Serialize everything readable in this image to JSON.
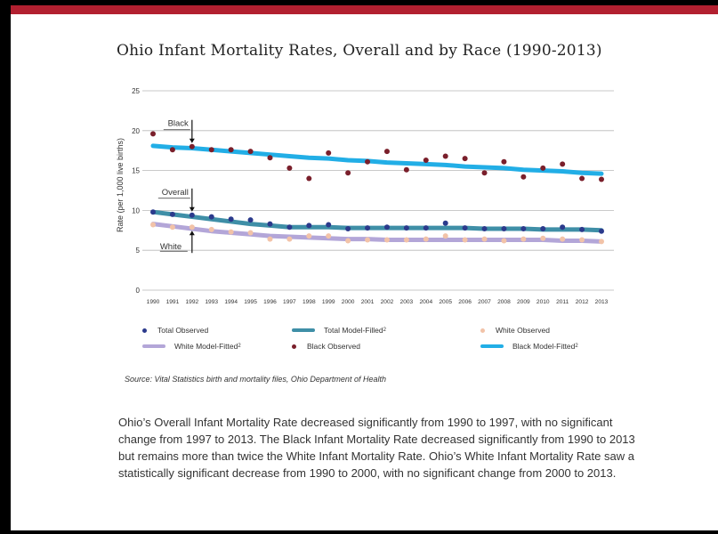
{
  "page": {
    "title": "Ohio Infant Mortality Rates, Overall and by Race (1990-2013)",
    "source": "Source: Vital Statistics birth and mortality files, Ohio Department of Health",
    "caption": "Ohio’s Overall Infant Mortality Rate decreased significantly from 1990 to 1997, with no significant change from 1997 to 2013. The Black Infant Mortality Rate decreased significantly from 1990 to 2013 but remains more than twice the White Infant Mortality Rate. Ohio’s White Infant Mortality Rate saw a statistically significant decrease from 1990 to 2000, with no significant change from 2000 to 2013."
  },
  "colors": {
    "border": "#000000",
    "accent_bar": "#b22030",
    "total_observed": "#2b3a8c",
    "total_model": "#3f8fa7",
    "white_observed": "#f2c3a8",
    "white_model": "#b3a6d8",
    "black_observed": "#7a1f2b",
    "black_model": "#22aee6"
  },
  "chart_data": {
    "type": "line",
    "title": "Ohio Infant Mortality Rates, Overall and by Race (1990-2013)",
    "ylabel": "Rate (per 1,000 live births)",
    "xlabel": "",
    "ylim": [
      0,
      25
    ],
    "yticks": [
      0,
      5,
      10,
      15,
      20,
      25
    ],
    "grid": true,
    "categories": [
      "1990",
      "1991",
      "1992",
      "1993",
      "1994",
      "1995",
      "1996",
      "1997",
      "1998",
      "1999",
      "2000",
      "2001",
      "2002",
      "2003",
      "2004",
      "2005",
      "2006",
      "2007",
      "2008",
      "2009",
      "2010",
      "2011",
      "2012",
      "2013"
    ],
    "series": [
      {
        "name": "Total Observed",
        "kind": "points",
        "color_key": "total_observed",
        "values": [
          9.8,
          9.5,
          9.4,
          9.2,
          8.9,
          8.8,
          8.3,
          7.9,
          8.1,
          8.2,
          7.7,
          7.8,
          7.9,
          7.8,
          7.8,
          8.4,
          7.8,
          7.7,
          7.7,
          7.7,
          7.7,
          7.9,
          7.6,
          7.4
        ]
      },
      {
        "name": "Total Model-Filled",
        "sup": "2",
        "kind": "line",
        "color_key": "total_model",
        "values": [
          9.8,
          9.5,
          9.2,
          8.9,
          8.6,
          8.3,
          8.1,
          7.9,
          7.9,
          7.9,
          7.8,
          7.8,
          7.8,
          7.8,
          7.8,
          7.8,
          7.8,
          7.7,
          7.7,
          7.7,
          7.6,
          7.6,
          7.6,
          7.5
        ]
      },
      {
        "name": "White Observed",
        "kind": "points",
        "color_key": "white_observed",
        "values": [
          8.2,
          7.9,
          7.9,
          7.6,
          7.3,
          7.2,
          6.4,
          6.4,
          6.8,
          6.8,
          6.2,
          6.3,
          6.3,
          6.3,
          6.4,
          6.8,
          6.3,
          6.4,
          6.2,
          6.4,
          6.5,
          6.4,
          6.3,
          6.1
        ]
      },
      {
        "name": "White Model-Fitted",
        "sup": "2",
        "kind": "line",
        "color_key": "white_model",
        "values": [
          8.3,
          8.0,
          7.7,
          7.4,
          7.2,
          7.0,
          6.8,
          6.7,
          6.6,
          6.5,
          6.4,
          6.4,
          6.3,
          6.3,
          6.3,
          6.3,
          6.3,
          6.3,
          6.3,
          6.3,
          6.3,
          6.2,
          6.2,
          6.1
        ]
      },
      {
        "name": "Black Observed",
        "kind": "points",
        "color_key": "black_observed",
        "values": [
          19.6,
          17.6,
          18.0,
          17.6,
          17.6,
          17.4,
          16.6,
          15.3,
          14.0,
          17.2,
          14.7,
          16.1,
          17.4,
          15.1,
          16.3,
          16.8,
          16.5,
          14.7,
          16.1,
          14.2,
          15.3,
          15.8,
          14.0,
          13.9
        ]
      },
      {
        "name": "Black Model-Fitted",
        "sup": "2",
        "kind": "line",
        "color_key": "black_model",
        "values": [
          18.1,
          17.9,
          17.8,
          17.6,
          17.4,
          17.2,
          17.0,
          16.8,
          16.6,
          16.5,
          16.3,
          16.2,
          16.0,
          15.9,
          15.8,
          15.7,
          15.5,
          15.4,
          15.3,
          15.1,
          15.0,
          14.9,
          14.7,
          14.6
        ]
      }
    ],
    "annotations": [
      {
        "text": "Black",
        "x": "1992",
        "target_y": 18.0
      },
      {
        "text": "Overall",
        "x": "1992",
        "target_y": 9.4
      },
      {
        "text": "White",
        "x": "1992",
        "target_y": 7.9
      }
    ],
    "legend": {
      "placement": "bottom"
    }
  }
}
